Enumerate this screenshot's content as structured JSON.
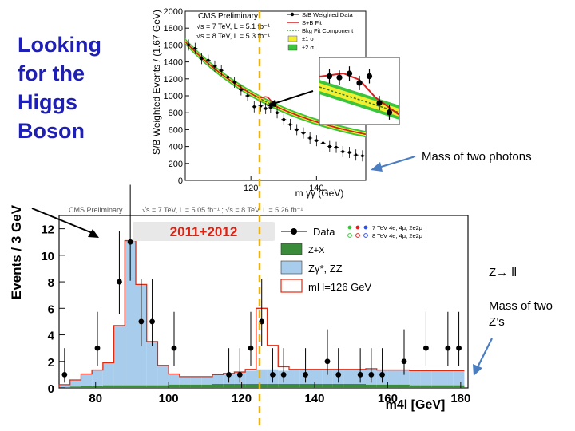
{
  "slide": {
    "title": "Looking for the Higgs Boson",
    "title_color": "#1e1fb4",
    "notes": {
      "photons": "Mass of two photons",
      "decay": "Z→ ll",
      "two_z": "Mass of two Z’s"
    },
    "arrow_color": "#4a7ec0",
    "marker_color": "#f0b400"
  },
  "chart_data": [
    {
      "type": "scatter",
      "title": "CMS Preliminary",
      "energy_lines": [
        "√s = 7 TeV, L = 5.1 fb⁻¹",
        "√s = 8 TeV, L = 5.3 fb⁻¹"
      ],
      "xlabel": "m γγ (GeV)",
      "ylabel": "S/B Weighted Events / (1.67 GeV)",
      "xlim": [
        100,
        155
      ],
      "ylim": [
        0,
        2000
      ],
      "xticks": [
        120,
        140
      ],
      "yticks": [
        0,
        200,
        400,
        600,
        800,
        1000,
        1200,
        1400,
        1600,
        1800,
        2000
      ],
      "legend": [
        "S/B Weighted Data",
        "S+B Fit",
        "Bkg Fit Component",
        "±1 σ",
        "±2 σ"
      ],
      "legend_colors": [
        "#000000",
        "#d42020",
        "#2a7a2a",
        "#f2ee30",
        "#3cc43c"
      ],
      "x": [
        101,
        103,
        105,
        107,
        109,
        111,
        113,
        115,
        117,
        119,
        121,
        123,
        124.5,
        126,
        128,
        130,
        132,
        134,
        136,
        138,
        140,
        142,
        144,
        146,
        148,
        150,
        152,
        154
      ],
      "y": [
        1600,
        1560,
        1440,
        1420,
        1350,
        1300,
        1220,
        1160,
        1070,
        1000,
        870,
        880,
        850,
        860,
        800,
        720,
        660,
        600,
        560,
        500,
        470,
        440,
        400,
        390,
        340,
        330,
        300,
        290
      ],
      "inset_points": {
        "x": [
          1,
          2,
          3,
          4,
          5,
          6,
          7
        ],
        "y": [
          0.72,
          0.7,
          0.76,
          0.62,
          0.72,
          0.32,
          0.18
        ]
      }
    },
    {
      "type": "bar",
      "title": "CMS Preliminary",
      "energy_text": "√s = 7 TeV, L = 5.05 fb⁻¹ ; √s = 8 TeV, L = 5.26 fb⁻¹",
      "badge": "2011+2012",
      "xlabel": "m4l [GeV]",
      "ylabel": "Events / 3 GeV",
      "xlim": [
        70,
        182
      ],
      "ylim": [
        0,
        13
      ],
      "xticks": [
        80,
        100,
        120,
        140,
        160,
        180
      ],
      "yticks": [
        0,
        2,
        4,
        6,
        8,
        10,
        12
      ],
      "legend": [
        "Data",
        "Z+X",
        "Zγ*, ZZ",
        "mH=126 GeV"
      ],
      "side_legend": [
        "7 TeV 4e, 4μ, 2e2μ",
        "8 TeV 4e, 4μ, 2e2μ"
      ],
      "bin_edges": [
        70,
        73,
        76,
        79,
        82,
        85,
        88,
        91,
        94,
        97,
        100,
        103,
        106,
        109,
        112,
        115,
        118,
        121,
        124,
        127,
        130,
        133,
        136,
        139,
        142,
        145,
        148,
        151,
        154,
        157,
        160,
        163,
        166,
        169,
        172,
        175,
        178,
        181
      ],
      "zz": [
        0.2,
        0.5,
        0.9,
        1.2,
        1.7,
        4.5,
        10.9,
        7.6,
        3.3,
        1.5,
        0.8,
        0.6,
        0.6,
        0.6,
        0.7,
        0.8,
        0.9,
        1.0,
        1.1,
        1.1,
        1.0,
        1.1,
        1.1,
        1.1,
        1.1,
        1.1,
        1.1,
        1.1,
        1.2,
        1.1,
        1.1,
        1.1,
        1.1,
        1.1,
        1.1,
        1.1,
        1.1
      ],
      "zx": [
        0.05,
        0.1,
        0.15,
        0.15,
        0.2,
        0.2,
        0.2,
        0.2,
        0.2,
        0.2,
        0.25,
        0.25,
        0.25,
        0.25,
        0.3,
        0.3,
        0.3,
        0.3,
        0.3,
        0.3,
        0.3,
        0.3,
        0.3,
        0.3,
        0.3,
        0.3,
        0.3,
        0.3,
        0.25,
        0.25,
        0.25,
        0.25,
        0.2,
        0.2,
        0.2,
        0.2,
        0.2
      ],
      "signal": [
        0,
        0,
        0,
        0,
        0,
        0,
        0,
        0,
        0,
        0,
        0,
        0,
        0,
        0,
        0,
        0,
        0,
        0.1,
        4.6,
        1.8,
        0.3,
        0,
        0,
        0,
        0,
        0,
        0,
        0,
        0,
        0,
        0,
        0,
        0,
        0,
        0,
        0,
        0
      ],
      "data_x": [
        71.5,
        80.5,
        86.5,
        89.5,
        92.5,
        95.5,
        101.5,
        116.5,
        119.5,
        122.5,
        125.5,
        128.5,
        131.5,
        137.5,
        143.5,
        146.5,
        152.5,
        155.5,
        158.5,
        164.5,
        170.5,
        176.5,
        179.5
      ],
      "data_y": [
        1,
        3,
        8,
        11,
        5,
        5,
        3,
        1,
        1,
        3,
        5,
        1,
        1,
        1,
        2,
        1,
        1,
        1,
        1,
        2,
        3,
        3,
        3
      ]
    }
  ]
}
